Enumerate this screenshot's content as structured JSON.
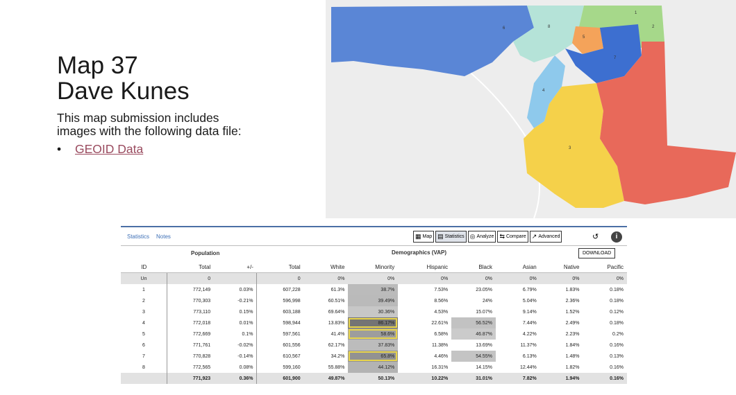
{
  "slide": {
    "title_line1": "Map 37",
    "title_line2": "Dave Kunes",
    "desc_line1": "This map submission includes",
    "desc_line2": "images with the following data file:",
    "bullet_char": "•",
    "link_text": "GEOID Data"
  },
  "tabs": {
    "statistics": "Statistics",
    "notes": "Notes"
  },
  "toolbar": {
    "map": "Map",
    "statistics": "Statistics",
    "analyze": "Analyze",
    "compare": "Compare",
    "advanced": "Advanced"
  },
  "headers": {
    "population": "Population",
    "demographics": "Demographics (VAP)",
    "download": "DOWNLOAD",
    "columns": [
      "ID",
      "Total",
      "+/-",
      "Total",
      "White",
      "Minority",
      "Hispanic",
      "Black",
      "Asian",
      "Native",
      "Pacific"
    ]
  },
  "table": [
    [
      "Un",
      "0",
      "",
      "0",
      "0%",
      "0%",
      "0%",
      "0%",
      "0%",
      "0%",
      "0%"
    ],
    [
      "1",
      "772,149",
      "0.03%",
      "607,228",
      "61.3%",
      "38.7%",
      "7.53%",
      "23.05%",
      "6.79%",
      "1.83%",
      "0.18%"
    ],
    [
      "2",
      "770,303",
      "-0.21%",
      "596,998",
      "60.51%",
      "39.49%",
      "8.56%",
      "24%",
      "5.04%",
      "2.36%",
      "0.18%"
    ],
    [
      "3",
      "773,110",
      "0.15%",
      "603,188",
      "69.64%",
      "30.36%",
      "4.53%",
      "15.07%",
      "9.14%",
      "1.52%",
      "0.12%"
    ],
    [
      "4",
      "772,018",
      "0.01%",
      "598,944",
      "13.83%",
      "86.17%",
      "22.61%",
      "56.52%",
      "7.44%",
      "2.49%",
      "0.18%"
    ],
    [
      "5",
      "772,669",
      "0.1%",
      "597,561",
      "41.4%",
      "58.6%",
      "6.58%",
      "46.87%",
      "4.22%",
      "2.23%",
      "0.2%"
    ],
    [
      "6",
      "771,761",
      "-0.02%",
      "601,556",
      "62.17%",
      "37.83%",
      "11.38%",
      "13.69%",
      "11.37%",
      "1.84%",
      "0.16%"
    ],
    [
      "7",
      "770,828",
      "-0.14%",
      "610,567",
      "34.2%",
      "65.8%",
      "4.46%",
      "54.55%",
      "6.13%",
      "1.48%",
      "0.13%"
    ],
    [
      "8",
      "772,565",
      "0.08%",
      "599,160",
      "55.88%",
      "44.12%",
      "16.31%",
      "14.15%",
      "12.44%",
      "1.82%",
      "0.16%"
    ],
    [
      "",
      "771,923",
      "0.36%",
      "601,900",
      "49.87%",
      "50.13%",
      "10.22%",
      "31.01%",
      "7.82%",
      "1.94%",
      "0.16%"
    ]
  ],
  "map_labels": [
    "6",
    "1",
    "4",
    "5",
    "3",
    "7",
    "8",
    "2"
  ],
  "colors": {
    "d1": "#e8695a",
    "d2": "#a6d88a",
    "d3": "#f5d14a",
    "d4": "#8ec9ec",
    "d5": "#f4a35a",
    "d6": "#5a86d6",
    "d7": "#3d6fd0",
    "d8": "#b5e3d8"
  }
}
